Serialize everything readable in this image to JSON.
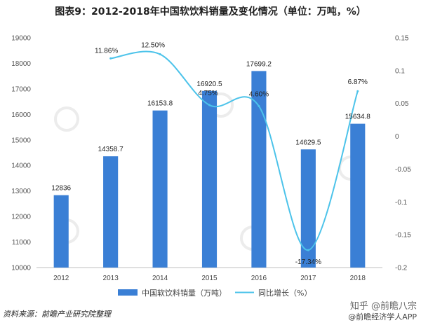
{
  "title": "图表9：2012-2018年中国软饮料销量及变化情况（单位：万吨，%）",
  "source": "资料来源：前瞻产业研究院整理",
  "watermark": {
    "zhihu": "知乎 @前瞻八宗",
    "app": "@前瞻经济学人APP"
  },
  "colors": {
    "bar": "#3a7fd5",
    "line": "#4cc3ea",
    "axis": "#bfbfbf"
  },
  "chart_data": {
    "type": "bar",
    "categories": [
      "2012",
      "2013",
      "2014",
      "2015",
      "2016",
      "2017",
      "2018"
    ],
    "series": [
      {
        "name": "中国软饮料销量（万吨）",
        "type": "bar",
        "axis": "left",
        "values": [
          12836,
          14358.7,
          16153.8,
          16920.5,
          17699.2,
          14629.5,
          15634.8
        ],
        "labels": [
          "12836",
          "14358.7",
          "16153.8",
          "16920.5",
          "17699.2",
          "14629.5",
          "15634.8"
        ]
      },
      {
        "name": "同比增长（%）",
        "type": "line",
        "axis": "right",
        "values": [
          null,
          0.1186,
          0.125,
          0.0475,
          0.046,
          -0.1734,
          0.0687
        ],
        "labels": [
          "",
          "11.86%",
          "12.50%",
          "4.75%",
          "4.60%",
          "-17.34%",
          "6.87%"
        ]
      }
    ],
    "left_axis": {
      "ylim": [
        10000,
        19000
      ],
      "ticks": [
        "10000",
        "11000",
        "12000",
        "13000",
        "14000",
        "15000",
        "16000",
        "17000",
        "18000",
        "19000"
      ]
    },
    "right_axis": {
      "ylim": [
        -0.2,
        0.15
      ],
      "ticks": [
        "-0.2",
        "-0.15",
        "-0.1",
        "-0.05",
        "0",
        "0.05",
        "0.1",
        "0.15"
      ]
    },
    "legend": {
      "position": "bottom"
    },
    "grid": false
  }
}
